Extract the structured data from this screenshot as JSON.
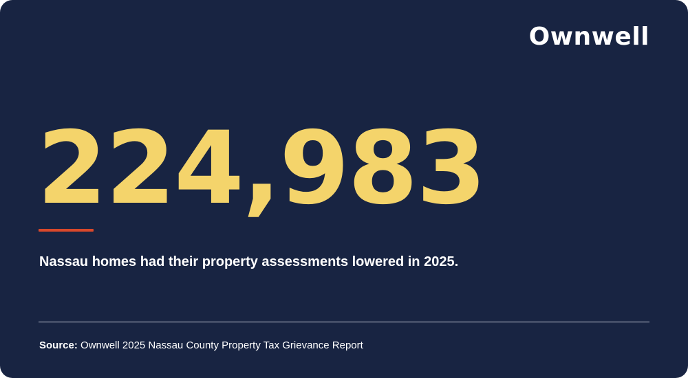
{
  "brand": {
    "logo_text": "Ownwell"
  },
  "headline": {
    "value": "224,983",
    "caption": "Nassau homes had their property assessments lowered in 2025."
  },
  "footer": {
    "source_label": "Source:",
    "source_text": "Ownwell 2025 Nassau County Property Tax Grievance Report"
  },
  "colors": {
    "background": "#182442",
    "number": "#f4d46b",
    "accent": "#d9482b",
    "text": "#ffffff"
  }
}
